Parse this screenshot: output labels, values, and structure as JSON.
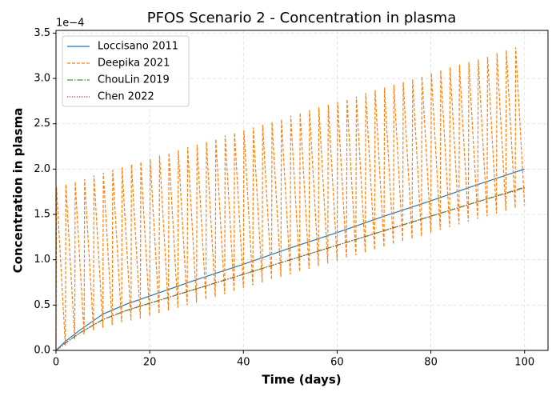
{
  "chart_data": {
    "type": "line",
    "title": "PFOS Scenario 2 - Concentration in plasma",
    "x_label": "Time (days)",
    "y_label": "Concentration in plasma",
    "y_offset_label": "1e−4",
    "x": [
      0,
      2,
      5,
      10,
      15,
      20,
      30,
      40,
      50,
      60,
      70,
      80,
      90,
      100
    ],
    "series": [
      {
        "name": "Loccisano 2011",
        "color": "#1f77b4",
        "dash": "solid",
        "values": [
          0,
          0.1,
          0.22,
          0.4,
          0.51,
          0.6,
          0.78,
          0.95,
          1.13,
          1.3,
          1.48,
          1.65,
          1.83,
          2.0
        ]
      },
      {
        "name": "Deepika 2021",
        "color": "#ff7f0e",
        "dash": "dashed",
        "x": [
          0,
          0.1,
          2,
          2.1,
          4,
          4.1,
          6,
          6.1,
          8,
          8.1,
          10,
          10.1,
          12,
          12.1,
          14,
          14.1,
          16,
          16.1,
          18,
          18.1,
          20,
          20.1,
          22,
          22.1,
          24,
          24.1,
          26,
          26.1,
          28,
          28.1,
          30,
          30.1,
          32,
          32.1,
          34,
          34.1,
          36,
          36.1,
          38,
          38.1,
          40,
          40.1,
          42,
          42.1,
          44,
          44.1,
          46,
          46.1,
          48,
          48.1,
          50,
          50.1,
          52,
          52.1,
          54,
          54.1,
          56,
          56.1,
          58,
          58.1,
          60,
          60.1,
          62,
          62.1,
          64,
          64.1,
          66,
          66.1,
          68,
          68.1,
          70,
          70.1,
          72,
          72.1,
          74,
          74.1,
          76,
          76.1,
          78,
          78.1,
          80,
          80.1,
          82,
          82.1,
          84,
          84.1,
          86,
          86.1,
          88,
          88.1,
          90,
          90.1,
          92,
          92.1,
          94,
          94.1,
          96,
          96.1,
          98,
          98.1,
          100
        ],
        "values": [
          0,
          1.8,
          0.05,
          1.83,
          0.12,
          1.86,
          0.17,
          1.89,
          0.22,
          1.93,
          0.25,
          1.96,
          0.28,
          1.99,
          0.31,
          2.02,
          0.33,
          2.05,
          0.35,
          2.08,
          0.38,
          2.11,
          0.41,
          2.15,
          0.44,
          2.18,
          0.47,
          2.21,
          0.5,
          2.24,
          0.53,
          2.27,
          0.56,
          2.3,
          0.59,
          2.33,
          0.62,
          2.37,
          0.65,
          2.4,
          0.69,
          2.43,
          0.72,
          2.46,
          0.75,
          2.49,
          0.78,
          2.52,
          0.81,
          2.55,
          0.84,
          2.59,
          0.87,
          2.62,
          0.9,
          2.65,
          0.93,
          2.68,
          0.96,
          2.71,
          0.99,
          2.74,
          1.02,
          2.77,
          1.05,
          2.8,
          1.08,
          2.84,
          1.11,
          2.87,
          1.14,
          2.9,
          1.17,
          2.93,
          1.2,
          2.96,
          1.23,
          2.99,
          1.26,
          3.02,
          1.3,
          3.06,
          1.33,
          3.09,
          1.36,
          3.12,
          1.39,
          3.15,
          1.42,
          3.18,
          1.45,
          3.21,
          1.48,
          3.24,
          1.51,
          3.28,
          1.54,
          3.31,
          1.57,
          3.34,
          1.6
        ]
      },
      {
        "name": "ChouLin 2019",
        "color": "#2ca02c",
        "dash": "dashdot",
        "values": [
          0,
          0.08,
          0.19,
          0.34,
          0.44,
          0.52,
          0.68,
          0.84,
          1.0,
          1.16,
          1.32,
          1.48,
          1.64,
          1.8
        ]
      },
      {
        "name": "Chen 2022",
        "color": "#d62728",
        "dash": "dotted",
        "values": [
          0,
          0.08,
          0.19,
          0.34,
          0.44,
          0.52,
          0.68,
          0.84,
          1.0,
          1.16,
          1.32,
          1.48,
          1.64,
          1.79
        ]
      }
    ],
    "xlim": [
      0,
      105
    ],
    "xticks": [
      0,
      20,
      40,
      60,
      80,
      100
    ],
    "ylim": [
      0,
      3.53
    ],
    "yticks": [
      {
        "value": 0,
        "label": "0.0"
      },
      0.5,
      {
        "value": 1,
        "label": "1.0"
      },
      1.5,
      {
        "value": 2,
        "label": "2.0"
      },
      2.5,
      {
        "value": 3,
        "label": "3.0"
      },
      3.5
    ],
    "grid": true,
    "legend": "upper left"
  }
}
